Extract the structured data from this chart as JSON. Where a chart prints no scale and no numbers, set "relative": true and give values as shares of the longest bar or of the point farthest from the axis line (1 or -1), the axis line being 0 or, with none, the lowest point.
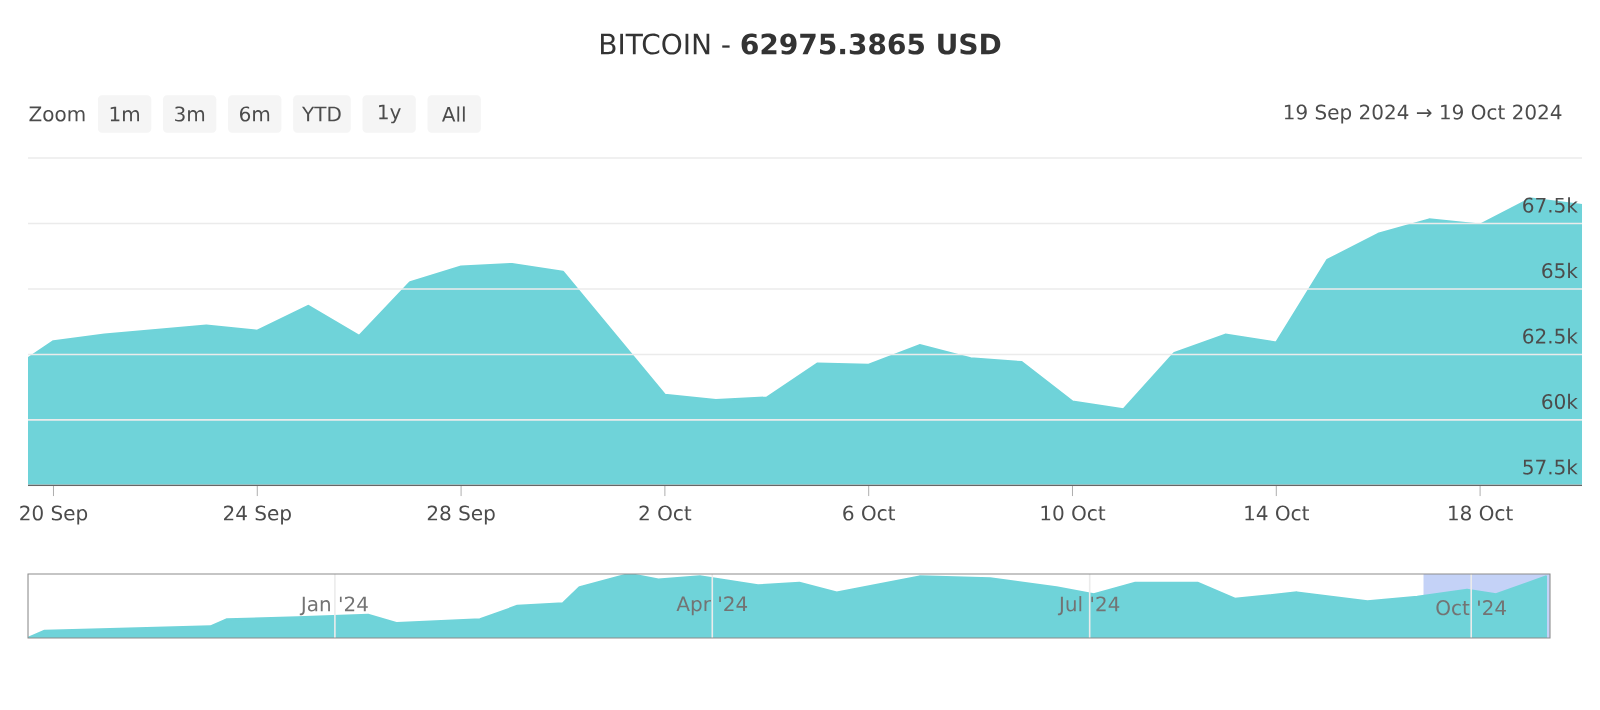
{
  "chart_data": [
    {
      "type": "area",
      "title": "BITCOIN - **62975.3865 USD**",
      "annotations": [
        "Zoom",
        "1m",
        "3m",
        "6m",
        "YTD",
        "1y",
        "All",
        "19 Sep 2024 → 19 Oct 2024"
      ],
      "x": [
        "2024-09-19T12:00",
        "2024-09-20",
        "2024-09-21",
        "2024-09-23",
        "2024-09-24",
        "2024-09-25",
        "2024-09-26",
        "2024-09-27",
        "2024-09-28",
        "2024-09-29",
        "2024-09-30",
        "2024-10-02",
        "2024-10-03",
        "2024-10-04",
        "2024-10-05",
        "2024-10-06",
        "2024-10-07",
        "2024-10-08",
        "2024-10-09",
        "2024-10-10",
        "2024-10-11",
        "2024-10-12",
        "2024-10-13",
        "2024-10-14",
        "2024-10-15",
        "2024-10-16",
        "2024-10-17",
        "2024-10-18",
        "2024-10-19",
        "2024-10-20"
      ],
      "values": [
        62350,
        63000,
        63250,
        63600,
        63400,
        64350,
        63200,
        65250,
        65850,
        65950,
        65650,
        60950,
        60750,
        60850,
        62150,
        62100,
        62850,
        62350,
        62200,
        60700,
        60400,
        62550,
        63250,
        62950,
        66100,
        67100,
        67650,
        67450,
        68450,
        68200
      ],
      "color": "#6fd3d9",
      "xlim": [
        "2024-09-19T12:00",
        "2024-10-20"
      ],
      "xticks": [
        {
          "value": "2024-09-20",
          "label": "20 Sep"
        },
        {
          "value": "2024-09-24",
          "label": "24 Sep"
        },
        {
          "value": "2024-09-28",
          "label": "28 Sep"
        },
        {
          "value": "2024-10-02",
          "label": "2 Oct"
        },
        {
          "value": "2024-10-06",
          "label": "6 Oct"
        },
        {
          "value": "2024-10-10",
          "label": "10 Oct"
        },
        {
          "value": "2024-10-14",
          "label": "14 Oct"
        },
        {
          "value": "2024-10-18",
          "label": "18 Oct"
        }
      ],
      "ylim": [
        57500,
        70000
      ],
      "yticks": [
        {
          "value": 57500,
          "label": "57.5k"
        },
        {
          "value": 60000,
          "label": "60k"
        },
        {
          "value": 62500,
          "label": "62.5k"
        },
        {
          "value": 65000,
          "label": "65k"
        },
        {
          "value": 67500,
          "label": "67.5k"
        },
        {
          "value": 70000,
          "label": null
        }
      ],
      "grid": "y"
    },
    {
      "type": "area",
      "relative": true,
      "x": [
        "2023-10-19",
        "2023-10-23",
        "2023-11-10",
        "2023-12-02",
        "2023-12-06",
        "2023-12-23",
        "2024-01-09",
        "2024-01-16",
        "2024-02-05",
        "2024-02-14",
        "2024-02-25",
        "2024-02-29",
        "2024-03-12",
        "2024-03-19",
        "2024-03-29",
        "2024-04-12",
        "2024-04-22",
        "2024-05-01",
        "2024-05-21",
        "2024-06-07",
        "2024-06-23",
        "2024-07-02",
        "2024-07-12",
        "2024-07-27",
        "2024-08-05",
        "2024-08-20",
        "2024-09-06",
        "2024-09-18",
        "2024-09-30",
        "2024-10-07",
        "2024-10-19"
      ],
      "values": [
        0,
        0.11,
        0.14,
        0.18,
        0.29,
        0.32,
        0.36,
        0.23,
        0.29,
        0.5,
        0.54,
        0.79,
        1,
        0.91,
        0.96,
        0.82,
        0.86,
        0.71,
        0.96,
        0.93,
        0.79,
        0.68,
        0.86,
        0.86,
        0.61,
        0.71,
        0.57,
        0.64,
        0.75,
        0.68,
        0.96
      ],
      "color": "#6fd3d9",
      "xlim": [
        "2023-10-19",
        "2024-10-20"
      ],
      "xticks": [
        {
          "value": "2024-01-01",
          "label": "Jan '24"
        },
        {
          "value": "2024-04-01",
          "label": "Apr '24"
        },
        {
          "value": "2024-07-01",
          "label": "Jul '24"
        },
        {
          "value": "2024-10-01",
          "label": "Oct '24"
        }
      ],
      "bands": [
        {
          "axis": "x",
          "from": "2024-09-19T12:00",
          "to": "2024-10-20",
          "color": "#c4d2f7"
        }
      ],
      "grid": "x",
      "tick_labels": "x"
    }
  ]
}
